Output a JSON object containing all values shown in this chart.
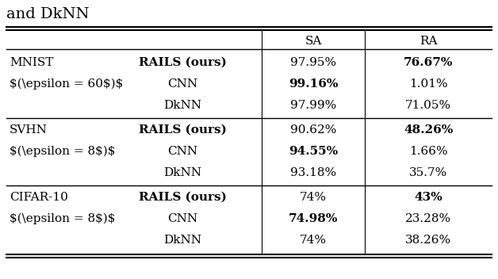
{
  "title": "and DkNN",
  "title_fontsize": 14,
  "groups": [
    {
      "dataset": "MNIST",
      "epsilon": "($\\epsilon = 60$)",
      "rows": [
        {
          "method": "RAILS (ours)",
          "method_bold": true,
          "sa": "97.95%",
          "ra": "76.67%",
          "sa_bold": false,
          "ra_bold": true
        },
        {
          "method": "CNN",
          "method_bold": false,
          "sa": "99.16%",
          "ra": "1.01%",
          "sa_bold": true,
          "ra_bold": false
        },
        {
          "method": "DkNN",
          "method_bold": false,
          "sa": "97.99%",
          "ra": "71.05%",
          "sa_bold": false,
          "ra_bold": false
        }
      ]
    },
    {
      "dataset": "SVHN",
      "epsilon": "($\\epsilon = 8$)",
      "rows": [
        {
          "method": "RAILS (ours)",
          "method_bold": true,
          "sa": "90.62%",
          "ra": "48.26%",
          "sa_bold": false,
          "ra_bold": true
        },
        {
          "method": "CNN",
          "method_bold": false,
          "sa": "94.55%",
          "ra": "1.66%",
          "sa_bold": true,
          "ra_bold": false
        },
        {
          "method": "DkNN",
          "method_bold": false,
          "sa": "93.18%",
          "ra": "35.7%",
          "sa_bold": false,
          "ra_bold": false
        }
      ]
    },
    {
      "dataset": "CIFAR-10",
      "epsilon": "($\\epsilon = 8$)",
      "rows": [
        {
          "method": "RAILS (ours)",
          "method_bold": true,
          "sa": "74%",
          "ra": "43%",
          "sa_bold": false,
          "ra_bold": true
        },
        {
          "method": "CNN",
          "method_bold": false,
          "sa": "74.98%",
          "ra": "23.28%",
          "sa_bold": true,
          "ra_bold": false
        },
        {
          "method": "DkNN",
          "method_bold": false,
          "sa": "74%",
          "ra": "38.26%",
          "sa_bold": false,
          "ra_bold": false
        }
      ]
    }
  ],
  "col_header_sa": "SA",
  "col_header_ra": "RA",
  "font_size": 11
}
